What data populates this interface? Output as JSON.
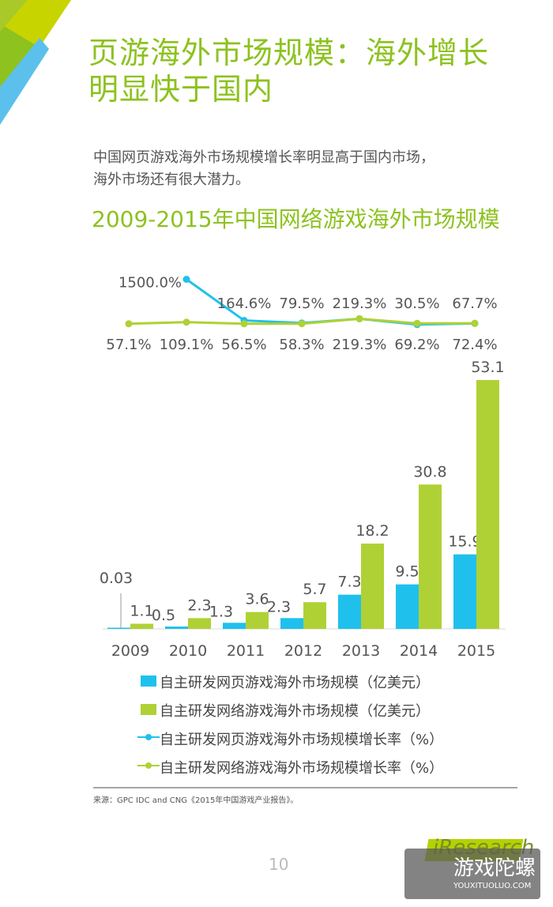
{
  "page": {
    "title_line1": "页游海外市场规模：海外增长",
    "title_line2": "明显快于国内",
    "description_line1": "中国网页游戏海外市场规模增长率明显高于国内市场，",
    "description_line2": "海外市场还有很大潜力。",
    "source": "来源：GPC IDC and CNG《2015年中国游戏产业报告》。",
    "page_number": "10",
    "logo_text": "iResearch",
    "watermark_cn": "游戏陀螺",
    "watermark_en": "YOUXITUOLUO.COM"
  },
  "colors": {
    "accent_green": "#8dc21f",
    "bar_blue": "#1fc1ec",
    "bar_green": "#afd135",
    "top_blue": "#5bc0eb"
  },
  "chart_data": {
    "type": "bar+line",
    "title": "2009-2015年中国网络游戏海外市场规模",
    "categories": [
      "2009",
      "2010",
      "2011",
      "2012",
      "2013",
      "2014",
      "2015"
    ],
    "series": [
      {
        "name": "自主研发网页游戏海外市场规模（亿美元）",
        "type": "bar",
        "color": "#1fc1ec",
        "values": [
          0.03,
          0.5,
          1.3,
          2.3,
          7.3,
          9.5,
          15.9
        ],
        "labels": [
          "0.03",
          "0.5",
          "1.3",
          "2.3",
          "7.3",
          "9.5",
          "15.9"
        ]
      },
      {
        "name": "自主研发网络游戏海外市场规模（亿美元）",
        "type": "bar",
        "color": "#afd135",
        "values": [
          1.1,
          2.3,
          3.6,
          5.7,
          18.2,
          30.8,
          53.1
        ],
        "labels": [
          "1.1",
          "2.3",
          "3.6",
          "5.7",
          "18.2",
          "30.8",
          "53.1"
        ]
      },
      {
        "name": "自主研发网页游戏海外市场规模增长率（%）",
        "type": "line",
        "color": "#1fc1ec",
        "values": [
          null,
          1500.0,
          164.6,
          79.5,
          219.3,
          30.5,
          67.7
        ],
        "labels": [
          "",
          "1500.0%",
          "164.6%",
          "79.5%",
          "219.3%",
          "30.5%",
          "67.7%"
        ]
      },
      {
        "name": "自主研发网络游戏海外市场规模增长率（%）",
        "type": "line",
        "color": "#afd135",
        "values": [
          57.1,
          109.1,
          56.5,
          58.3,
          219.3,
          69.2,
          72.4
        ],
        "labels": [
          "57.1%",
          "109.1%",
          "56.5%",
          "58.3%",
          "219.3%",
          "69.2%",
          "72.4%"
        ]
      }
    ],
    "legend_position": "bottom",
    "grid": false
  }
}
